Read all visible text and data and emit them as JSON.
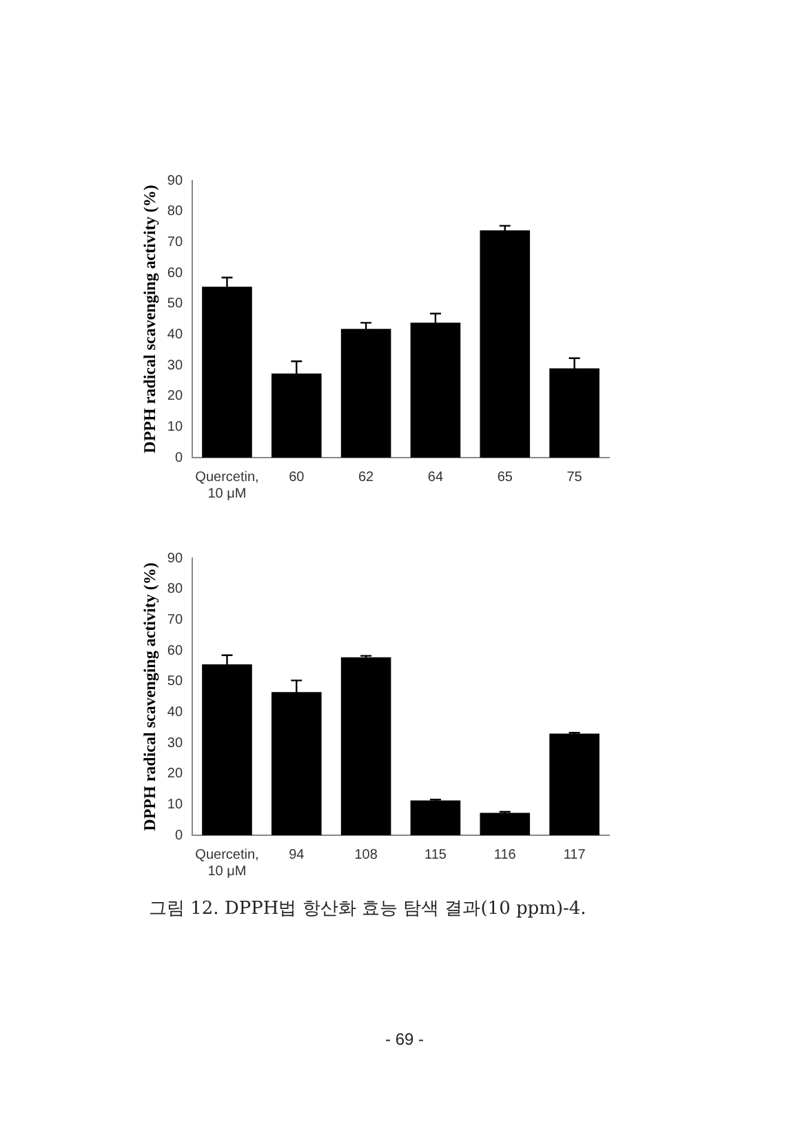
{
  "chart_data": [
    {
      "type": "bar",
      "ylabel": "DPPH radical scavenging activity (%)",
      "categories": [
        "Quercetin,\n10 μM",
        "60",
        "62",
        "64",
        "65",
        "75"
      ],
      "values": [
        55.5,
        27.3,
        41.8,
        43.8,
        73.8,
        29
      ],
      "errors": [
        3,
        4,
        2,
        3,
        1.5,
        3.3
      ],
      "color": "#000000",
      "ylim": [
        0,
        90
      ],
      "yticks": [
        0,
        10,
        20,
        30,
        40,
        50,
        60,
        70,
        80,
        90
      ],
      "grid": false,
      "legend": false
    },
    {
      "type": "bar",
      "ylabel": "DPPH radical scavenging activity (%)",
      "categories": [
        "Quercetin,\n10 μM",
        "94",
        "108",
        "115",
        "116",
        "117"
      ],
      "values": [
        55.5,
        46.5,
        57.8,
        11.3,
        7.3,
        33
      ],
      "errors": [
        3,
        3.8,
        0.5,
        0.3,
        0.3,
        0.3
      ],
      "color": "#000000",
      "ylim": [
        0,
        90
      ],
      "yticks": [
        0,
        10,
        20,
        30,
        40,
        50,
        60,
        70,
        80,
        90
      ],
      "grid": false,
      "legend": false,
      "annotations": [
        "그림 12. DPPH법 항산화 효능 탐색 결과(10 ppm)-4.",
        "- 69 -"
      ]
    }
  ]
}
